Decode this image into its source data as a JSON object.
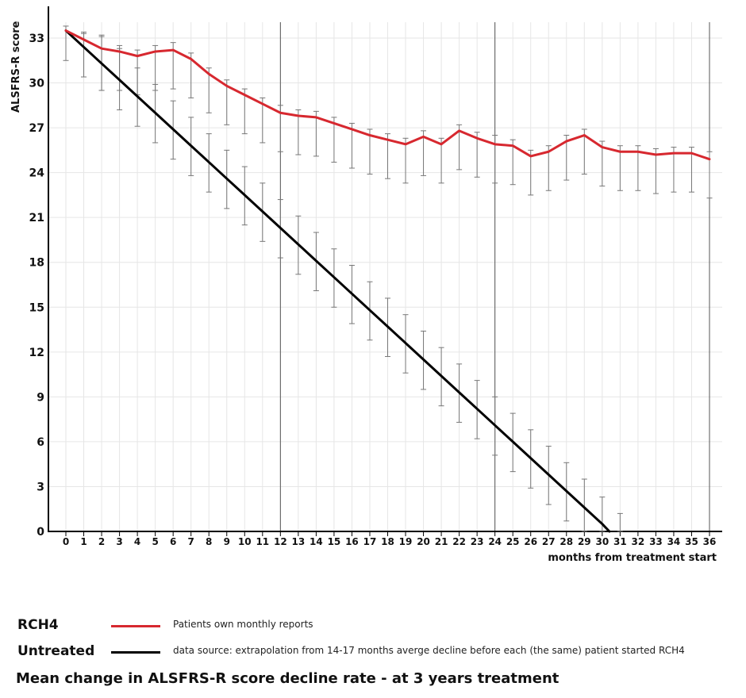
{
  "chart_data": {
    "type": "line",
    "title": "Mean change in ALSFRS-R score decline rate - at 3 years treatment",
    "xlabel": "months from treatment start",
    "ylabel": "ALSFRS-R score",
    "xlim": [
      0,
      36
    ],
    "ylim": [
      0,
      33
    ],
    "x_ticks": [
      "0",
      "1",
      "2",
      "3",
      "4",
      "5",
      "6",
      "7",
      "8",
      "9",
      "10",
      "11",
      "12",
      "13",
      "14",
      "15",
      "16",
      "17",
      "18",
      "19",
      "20",
      "21",
      "22",
      "23",
      "24",
      "25",
      "26",
      "27",
      "28",
      "29",
      "30",
      "31",
      "32",
      "33",
      "34",
      "35",
      "36"
    ],
    "y_ticks": [
      "0",
      "3",
      "6",
      "9",
      "12",
      "15",
      "18",
      "21",
      "24",
      "27",
      "30",
      "33"
    ],
    "grid": true,
    "reference_lines_x": [
      12,
      24,
      36
    ],
    "legend_placement": "bottom",
    "colors": {
      "rch4": "#d7282f",
      "untreated": "#000000",
      "error_bar": "#777777",
      "grid": "#e6e6e6",
      "reference_line": "#555555"
    },
    "series": [
      {
        "name": "RCH4",
        "description": "Patients own monthly reports",
        "x": [
          0,
          1,
          2,
          3,
          4,
          5,
          6,
          7,
          8,
          9,
          10,
          11,
          12,
          13,
          14,
          15,
          16,
          17,
          18,
          19,
          20,
          21,
          22,
          23,
          24,
          25,
          26,
          27,
          28,
          29,
          30,
          31,
          32,
          33,
          34,
          35,
          36
        ],
        "values": [
          33.5,
          32.9,
          32.3,
          32.1,
          31.8,
          32.1,
          32.2,
          31.6,
          30.6,
          29.8,
          29.2,
          28.6,
          28.0,
          27.8,
          27.7,
          27.3,
          26.9,
          26.5,
          26.2,
          25.9,
          26.4,
          25.9,
          26.8,
          26.3,
          25.9,
          25.8,
          25.1,
          25.4,
          26.1,
          26.5,
          25.7,
          25.4,
          25.4,
          25.2,
          25.3,
          25.3,
          24.9
        ],
        "error_low": [
          31.5,
          30.4,
          29.5,
          29.5,
          29.2,
          29.5,
          29.6,
          29.0,
          28.0,
          27.2,
          26.6,
          26.0,
          25.4,
          25.2,
          25.1,
          24.7,
          24.3,
          23.9,
          23.6,
          23.3,
          23.8,
          23.3,
          24.2,
          23.7,
          23.3,
          23.2,
          22.5,
          22.8,
          23.5,
          23.9,
          23.1,
          22.8,
          22.8,
          22.6,
          22.7,
          22.7,
          22.3
        ],
        "error_high": [
          33.8,
          33.3,
          33.1,
          32.5,
          32.2,
          32.5,
          32.7,
          32.0,
          31.0,
          30.2,
          29.6,
          29.0,
          28.5,
          28.2,
          28.1,
          27.7,
          27.3,
          26.9,
          26.6,
          26.3,
          26.8,
          26.3,
          27.2,
          26.7,
          26.5,
          26.2,
          25.5,
          25.8,
          26.5,
          26.9,
          26.1,
          25.8,
          25.8,
          25.6,
          25.7,
          25.7,
          25.4
        ]
      },
      {
        "name": "Untreated",
        "description": "data source: extrapolation from 14-17 months averge decline before each (the same) patient started RCH4",
        "x": [
          0,
          1,
          2,
          3,
          4,
          5,
          6,
          7,
          8,
          9,
          10,
          11,
          12,
          13,
          14,
          15,
          16,
          17,
          18,
          19,
          20,
          21,
          22,
          23,
          24,
          25,
          26,
          27,
          28,
          29,
          30,
          30.4
        ],
        "values": [
          33.5,
          32.4,
          31.3,
          30.2,
          29.1,
          28.0,
          26.9,
          25.8,
          24.7,
          23.6,
          22.5,
          21.4,
          20.3,
          19.2,
          18.1,
          17.0,
          15.9,
          14.8,
          13.7,
          12.6,
          11.5,
          10.4,
          9.3,
          8.2,
          7.1,
          6.0,
          4.9,
          3.8,
          2.7,
          1.6,
          0.5,
          0
        ],
        "error_points_x": [
          1,
          2,
          3,
          4,
          5,
          6,
          7,
          8,
          9,
          10,
          11,
          12,
          13,
          14,
          15,
          16,
          17,
          18,
          19,
          20,
          21,
          22,
          23,
          24,
          25,
          26,
          27,
          28,
          29,
          30,
          31
        ],
        "error_low": [
          30.4,
          29.5,
          28.2,
          27.1,
          26.0,
          24.9,
          23.8,
          22.7,
          21.6,
          20.5,
          19.4,
          18.3,
          17.2,
          16.1,
          15.0,
          13.9,
          12.8,
          11.7,
          10.6,
          9.5,
          8.4,
          7.3,
          6.2,
          5.1,
          4.0,
          2.9,
          1.8,
          0.7,
          0,
          0,
          0
        ],
        "error_high": [
          33.4,
          33.2,
          32.3,
          31.0,
          29.9,
          28.8,
          27.7,
          26.6,
          25.5,
          24.4,
          23.3,
          22.2,
          21.1,
          20.0,
          18.9,
          17.8,
          16.7,
          15.6,
          14.5,
          13.4,
          12.3,
          11.2,
          10.1,
          9.0,
          7.9,
          6.8,
          5.7,
          4.6,
          3.5,
          2.3,
          1.2
        ]
      }
    ]
  }
}
